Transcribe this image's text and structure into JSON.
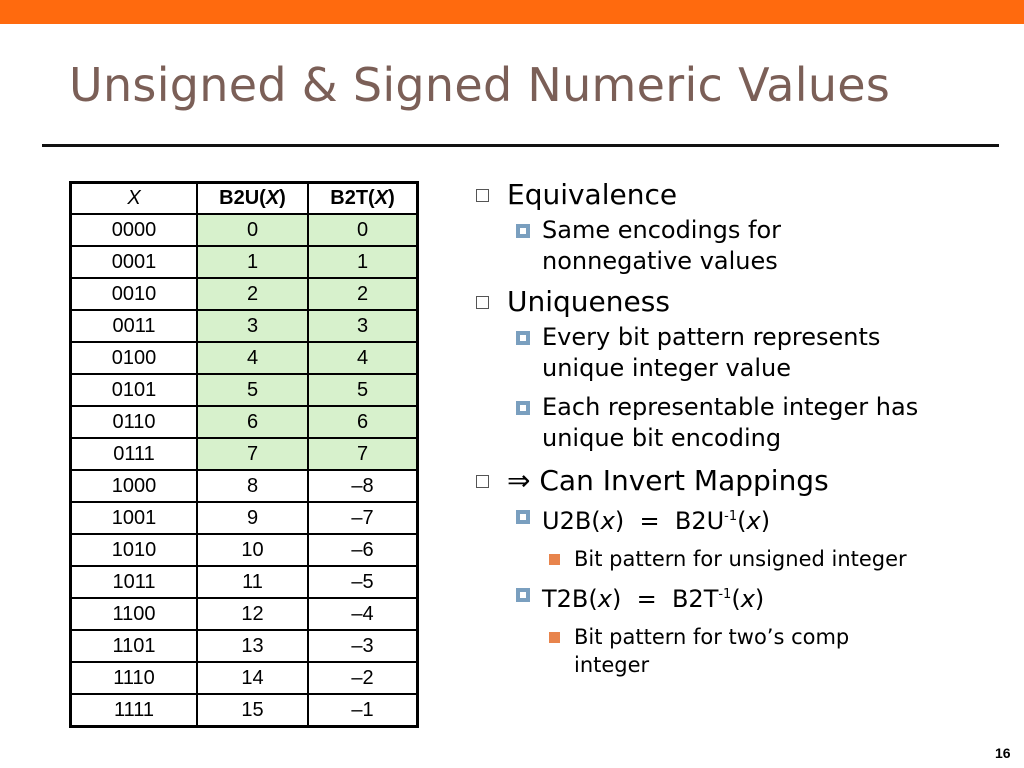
{
  "colors": {
    "top_bar": "#ff6a0e",
    "title": "#7b5f57",
    "highlight_cell": "#d7f1cc"
  },
  "slide": {
    "title": "Unsigned & Signed Numeric Values",
    "page_number": "16"
  },
  "table": {
    "headers": {
      "x": "X",
      "b2u_prefix": "B2U(",
      "b2u_var": "X",
      "b2u_suffix": ")",
      "b2t_prefix": "B2T(",
      "b2t_var": "X",
      "b2t_suffix": ")"
    },
    "rows": [
      {
        "x": "0000",
        "b2u": "0",
        "b2t": "0"
      },
      {
        "x": "0001",
        "b2u": "1",
        "b2t": "1"
      },
      {
        "x": "0010",
        "b2u": "2",
        "b2t": "2"
      },
      {
        "x": "0011",
        "b2u": "3",
        "b2t": "3"
      },
      {
        "x": "0100",
        "b2u": "4",
        "b2t": "4"
      },
      {
        "x": "0101",
        "b2u": "5",
        "b2t": "5"
      },
      {
        "x": "0110",
        "b2u": "6",
        "b2t": "6"
      },
      {
        "x": "0111",
        "b2u": "7",
        "b2t": "7"
      },
      {
        "x": "1000",
        "b2u": "8",
        "b2t": "–8"
      },
      {
        "x": "1001",
        "b2u": "9",
        "b2t": "–7"
      },
      {
        "x": "1010",
        "b2u": "10",
        "b2t": "–6"
      },
      {
        "x": "1011",
        "b2u": "11",
        "b2t": "–5"
      },
      {
        "x": "1100",
        "b2u": "12",
        "b2t": "–4"
      },
      {
        "x": "1101",
        "b2u": "13",
        "b2t": "–3"
      },
      {
        "x": "1110",
        "b2u": "14",
        "b2t": "–2"
      },
      {
        "x": "1111",
        "b2u": "15",
        "b2t": "–1"
      }
    ]
  },
  "bullets": {
    "equivalence": "Equivalence",
    "same_encodings": "Same encodings for nonnegative values",
    "uniqueness": "Uniqueness",
    "every_bit": "Every bit pattern represents unique integer value",
    "each_int": "Each representable integer has unique bit encoding",
    "invert_arrow": "⇒",
    "invert": "Can Invert Mappings",
    "u2b": {
      "lhs": "U2B(",
      "var": "x",
      "mid": ")  =  B2U",
      "sup": "-1",
      "open": "(",
      "var2": "x",
      "close": ")"
    },
    "u2b_sub": "Bit pattern for unsigned integer",
    "t2b": {
      "lhs": "T2B(",
      "var": "x",
      "mid": ")  =  B2T",
      "sup": "-1",
      "open": "(",
      "var2": "x",
      "close": ")"
    },
    "t2b_sub": "Bit pattern for two’s comp integer"
  }
}
